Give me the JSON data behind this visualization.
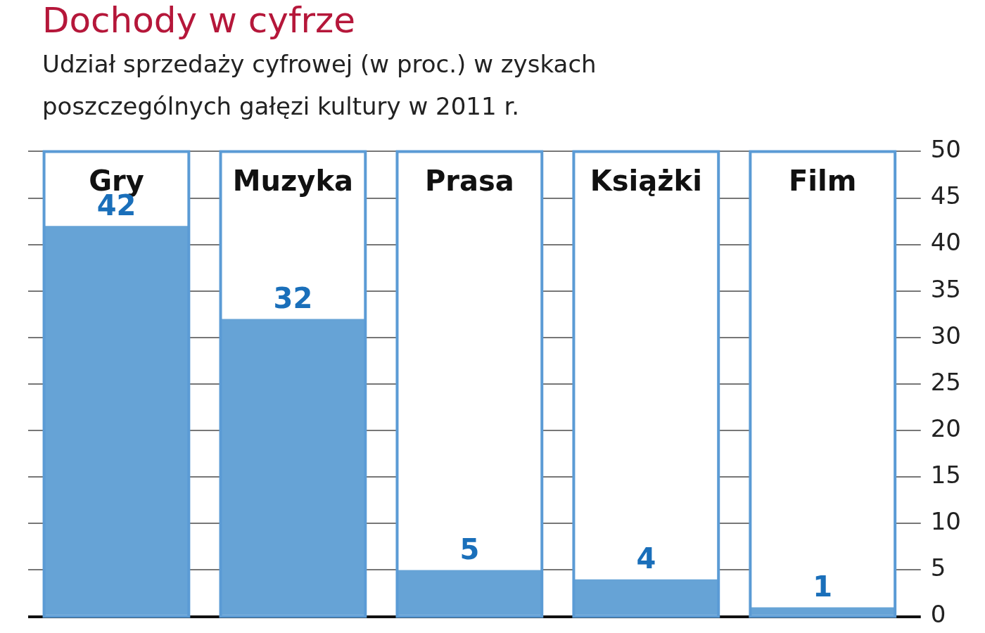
{
  "chart_data": {
    "type": "bar",
    "title": "Dochody w cyfrze",
    "subtitle": "Udział  sprzedaży cyfrowej (w proc.) w zyskach poszczególnych gałęzi kultury w 2011 r.",
    "categories": [
      "Gry",
      "Muzyka",
      "Prasa",
      "Książki",
      "Film"
    ],
    "values": [
      42,
      32,
      5,
      4,
      1
    ],
    "color": "#66a3d6",
    "ylim": [
      0,
      50
    ],
    "yticks": [
      0,
      5,
      10,
      15,
      20,
      25,
      30,
      35,
      40,
      45,
      50
    ],
    "grid": "y",
    "data_labels": true
  }
}
